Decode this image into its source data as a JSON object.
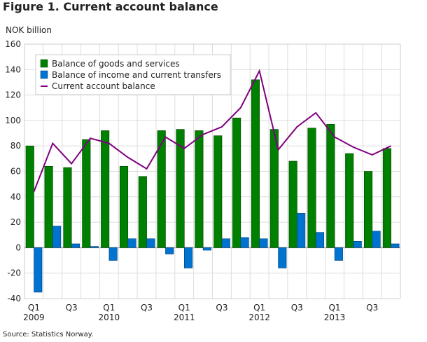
{
  "figure_title": "Figure 1. Current account balance",
  "source": "Source: Statistics Norway.",
  "chart_data": {
    "type": "bar",
    "ylabel": "NOK billion",
    "ylim": [
      -40,
      160
    ],
    "yticks": [
      -40,
      -20,
      0,
      20,
      40,
      60,
      80,
      100,
      120,
      140,
      160
    ],
    "grid": true,
    "legend_position": "top-left",
    "categories": [
      "2009Q1",
      "2009Q2",
      "2009Q3",
      "2009Q4",
      "2010Q1",
      "2010Q2",
      "2010Q3",
      "2010Q4",
      "2011Q1",
      "2011Q2",
      "2011Q3",
      "2011Q4",
      "2012Q1",
      "2012Q2",
      "2012Q3",
      "2012Q4",
      "2013Q1",
      "2013Q2",
      "2013Q3",
      "2013Q4"
    ],
    "xtick_labels": [
      {
        "index": 0,
        "label": "Q1",
        "year": "2009"
      },
      {
        "index": 2,
        "label": "Q3",
        "year": ""
      },
      {
        "index": 4,
        "label": "Q1",
        "year": "2010"
      },
      {
        "index": 6,
        "label": "Q3",
        "year": ""
      },
      {
        "index": 8,
        "label": "Q1",
        "year": "2011"
      },
      {
        "index": 10,
        "label": "Q3",
        "year": ""
      },
      {
        "index": 12,
        "label": "Q1",
        "year": "2012"
      },
      {
        "index": 14,
        "label": "Q3",
        "year": ""
      },
      {
        "index": 16,
        "label": "Q1",
        "year": "2013"
      },
      {
        "index": 18,
        "label": "Q3",
        "year": ""
      }
    ],
    "series": [
      {
        "name": "Balance of goods and services",
        "type": "bar",
        "color": "#008000",
        "values": [
          80,
          64,
          63,
          85,
          92,
          64,
          56,
          92,
          93,
          92,
          88,
          102,
          132,
          93,
          68,
          94,
          97,
          74,
          60,
          78
        ]
      },
      {
        "name": "Balance of income and current transfers",
        "type": "bar",
        "color": "#0073d1",
        "values": [
          -35,
          17,
          3,
          1,
          -10,
          7,
          7,
          -5,
          -16,
          -2,
          7,
          8,
          7,
          -16,
          27,
          12,
          -10,
          5,
          13,
          3
        ]
      },
      {
        "name": "Current account balance",
        "type": "line",
        "color": "#800080",
        "values": [
          44,
          82,
          66,
          86,
          82,
          71,
          62,
          87,
          78,
          89,
          95,
          110,
          139,
          77,
          95,
          106,
          87,
          79,
          73,
          80
        ]
      }
    ]
  }
}
